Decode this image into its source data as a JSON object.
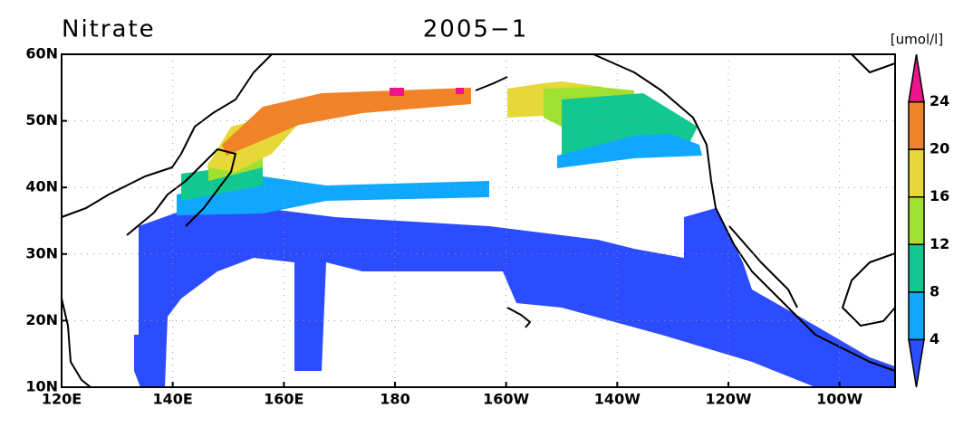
{
  "chart_data": {
    "type": "contour",
    "title": "Nitrate",
    "subtitle": "2005−1",
    "xlim": [
      120,
      270
    ],
    "ylim": [
      10,
      60
    ],
    "xticks": [
      {
        "value": 120,
        "label": "120E"
      },
      {
        "value": 140,
        "label": "140E"
      },
      {
        "value": 160,
        "label": "160E"
      },
      180,
      {
        "value": 200,
        "label": "160W"
      },
      {
        "value": 220,
        "label": "140W"
      },
      {
        "value": 240,
        "label": "120W"
      },
      {
        "value": 260,
        "label": "100W"
      }
    ],
    "yticks": [
      {
        "value": 10,
        "label": "10N"
      },
      {
        "value": 20,
        "label": "20N"
      },
      {
        "value": 30,
        "label": "30N"
      },
      {
        "value": 40,
        "label": "40N"
      },
      {
        "value": 50,
        "label": "50N"
      },
      {
        "value": 60,
        "label": "60N"
      }
    ],
    "grid": true,
    "colorbar": {
      "label": "[umol/l]",
      "levels": [
        4,
        8,
        12,
        16,
        20,
        24
      ],
      "colors": [
        "#2c4cff",
        "#10a8ff",
        "#10c890",
        "#a0e030",
        "#e6d838",
        "#f08228",
        "#f0148c"
      ]
    }
  }
}
